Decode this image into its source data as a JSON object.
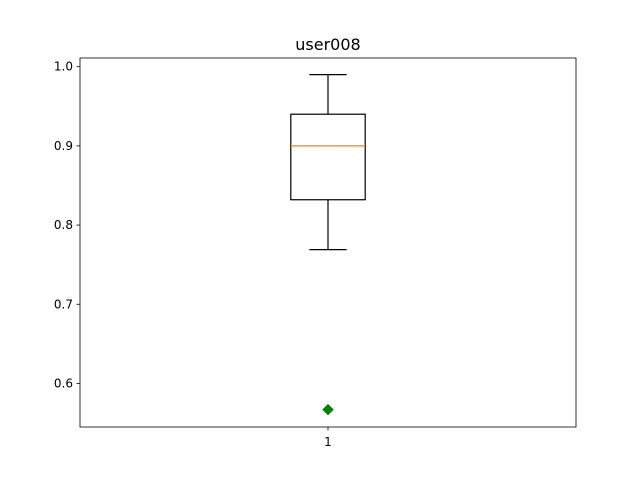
{
  "chart_data": {
    "type": "box",
    "title": "user008",
    "xlabel": "",
    "ylabel": "",
    "categories": [
      "1"
    ],
    "ylim": [
      0.545,
      1.011
    ],
    "yticks": [
      0.6,
      0.7,
      0.8,
      0.9,
      1.0
    ],
    "ytick_labels": [
      "0.6",
      "0.7",
      "0.8",
      "0.9",
      "1.0"
    ],
    "grid": false,
    "boxes": [
      {
        "category": "1",
        "whisker_low": 0.769,
        "q1": 0.832,
        "median": 0.9,
        "q3": 0.94,
        "whisker_high": 0.99,
        "outliers": [
          0.567
        ]
      }
    ],
    "colors": {
      "box": "#000000",
      "median": "#ff7f0e",
      "outlier": "#008000"
    }
  }
}
